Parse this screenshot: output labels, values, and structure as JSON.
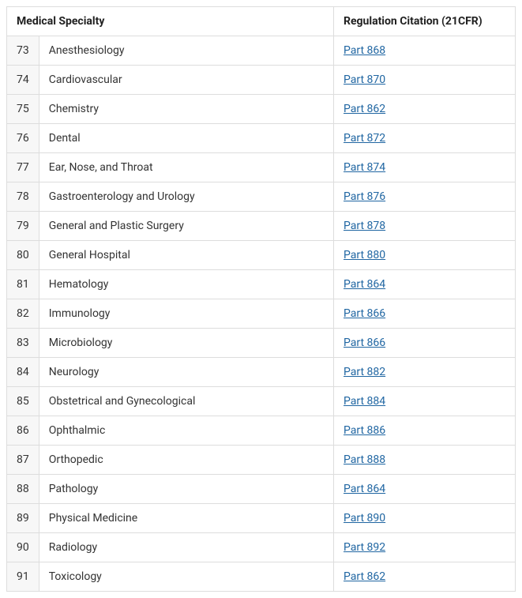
{
  "table": {
    "headers": {
      "col1": "Medical Specialty",
      "col2": "Regulation Citation (21CFR)"
    },
    "link_color": "#2066a2",
    "border_color": "#dddddd",
    "num_bg_color": "#f7f7f7",
    "rows": [
      {
        "num": "73",
        "specialty": "Anesthesiology",
        "citation": "Part 868"
      },
      {
        "num": "74",
        "specialty": "Cardiovascular",
        "citation": "Part 870"
      },
      {
        "num": "75",
        "specialty": "Chemistry",
        "citation": "Part 862"
      },
      {
        "num": "76",
        "specialty": "Dental",
        "citation": "Part 872"
      },
      {
        "num": "77",
        "specialty": "Ear, Nose, and Throat",
        "citation": "Part 874"
      },
      {
        "num": "78",
        "specialty": "Gastroenterology and Urology",
        "citation": "Part 876"
      },
      {
        "num": "79",
        "specialty": "General and Plastic Surgery",
        "citation": "Part 878"
      },
      {
        "num": "80",
        "specialty": "General Hospital",
        "citation": "Part 880"
      },
      {
        "num": "81",
        "specialty": "Hematology",
        "citation": "Part 864"
      },
      {
        "num": "82",
        "specialty": "Immunology",
        "citation": "Part 866"
      },
      {
        "num": "83",
        "specialty": "Microbiology",
        "citation": "Part 866"
      },
      {
        "num": "84",
        "specialty": "Neurology",
        "citation": "Part 882"
      },
      {
        "num": "85",
        "specialty": "Obstetrical and Gynecological",
        "citation": "Part 884"
      },
      {
        "num": "86",
        "specialty": "Ophthalmic",
        "citation": "Part 886"
      },
      {
        "num": "87",
        "specialty": "Orthopedic",
        "citation": "Part 888"
      },
      {
        "num": "88",
        "specialty": "Pathology",
        "citation": "Part 864"
      },
      {
        "num": "89",
        "specialty": "Physical Medicine",
        "citation": "Part 890"
      },
      {
        "num": "90",
        "specialty": "Radiology",
        "citation": "Part 892"
      },
      {
        "num": "91",
        "specialty": "Toxicology",
        "citation": "Part 862"
      }
    ]
  }
}
